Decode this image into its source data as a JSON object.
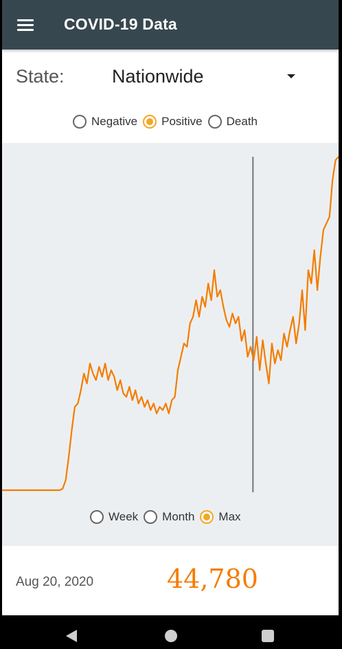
{
  "header": {
    "title": "COVID-19 Data",
    "menu_icon": "hamburger-menu-icon"
  },
  "state": {
    "label": "State:",
    "selected": "Nationwide"
  },
  "metric_options": [
    {
      "label": "Negative",
      "checked": false
    },
    {
      "label": "Positive",
      "checked": true
    },
    {
      "label": "Death",
      "checked": false
    }
  ],
  "range_options": [
    {
      "label": "Week",
      "checked": false
    },
    {
      "label": "Month",
      "checked": false
    },
    {
      "label": "Max",
      "checked": true
    }
  ],
  "selection": {
    "date": "Aug 20, 2020",
    "value": "44,780"
  },
  "colors": {
    "app_bar": "#37474f",
    "accent": "#f5a623",
    "line": "#f57c00",
    "chart_bg": "#eceff1"
  },
  "chart_data": {
    "type": "line",
    "title": "",
    "xlabel": "",
    "ylabel": "",
    "grid": false,
    "x_start": "2020-01-22",
    "x_end": "2020-10-31",
    "cursor_x": "2020-08-20",
    "cursor_value": 44780,
    "ylim": [
      0,
      100000
    ],
    "series": [
      {
        "values": [
          0,
          0,
          0,
          0,
          0,
          0,
          0,
          0,
          0,
          0,
          0,
          0,
          0,
          0,
          0,
          0,
          0,
          0,
          0,
          0,
          500,
          3000,
          10000,
          18000,
          25000,
          26000,
          30000,
          35000,
          32000,
          38000,
          35000,
          33000,
          37000,
          34000,
          38000,
          33000,
          36000,
          34000,
          30000,
          33000,
          29000,
          28000,
          31000,
          27000,
          30000,
          26000,
          28000,
          25000,
          27000,
          24000,
          26000,
          23000,
          25000,
          24000,
          26000,
          23000,
          27000,
          28000,
          36000,
          40000,
          44000,
          43000,
          50000,
          52000,
          57000,
          52000,
          58000,
          55000,
          62000,
          57000,
          66000,
          58000,
          60000,
          55000,
          51000,
          49000,
          53000,
          50000,
          52000,
          44780,
          48000,
          40000,
          43000,
          39000,
          46000,
          36000,
          45000,
          38000,
          32000,
          44000,
          38000,
          42000,
          39000,
          47000,
          43000,
          48000,
          52000,
          44000,
          50000,
          60000,
          48000,
          66000,
          62000,
          72000,
          60000,
          70000,
          78000,
          80000,
          82000,
          93000,
          99000,
          100000
        ]
      }
    ]
  }
}
